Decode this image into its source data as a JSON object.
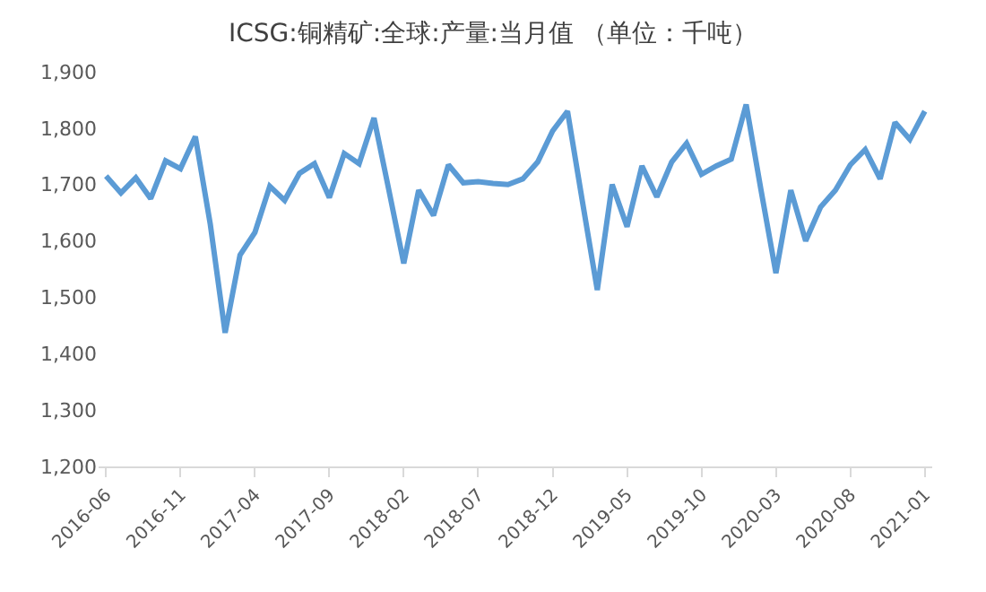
{
  "chart_data": {
    "type": "line",
    "title": "ICSG:铜精矿:全球:产量:当月值 （单位：千吨）",
    "categories": [
      "2016-06",
      null,
      null,
      null,
      null,
      "2016-11",
      null,
      null,
      null,
      null,
      "2017-04",
      null,
      null,
      null,
      null,
      "2017-09",
      null,
      null,
      null,
      null,
      "2018-02",
      null,
      null,
      null,
      null,
      "2018-07",
      null,
      null,
      null,
      null,
      "2018-12",
      null,
      null,
      null,
      null,
      "2019-05",
      null,
      null,
      null,
      null,
      "2019-10",
      null,
      null,
      null,
      null,
      "2020-03",
      null,
      null,
      null,
      null,
      "2020-08",
      null,
      null,
      null,
      null,
      "2021-01"
    ],
    "series": [
      {
        "color": "#5b9bd5",
        "values": [
          1715,
          1685,
          1712,
          1675,
          1742,
          1728,
          1785,
          1630,
          1437,
          1575,
          1615,
          1697,
          1672,
          1720,
          1737,
          1677,
          1755,
          1737,
          1818,
          1690,
          1560,
          1690,
          1645,
          1735,
          1703,
          1705,
          1702,
          1700,
          1710,
          1740,
          1795,
          1830,
          1670,
          1513,
          1700,
          1625,
          1733,
          1678,
          1740,
          1773,
          1718,
          1733,
          1745,
          1842,
          1690,
          1543,
          1690,
          1600,
          1660,
          1690,
          1735,
          1762,
          1710,
          1810,
          1780,
          1830
        ]
      }
    ],
    "ylim": [
      1200,
      1900
    ],
    "yticks": [
      {
        "value": 1200,
        "label": "1,200"
      },
      {
        "value": 1300,
        "label": "1,300"
      },
      {
        "value": 1400,
        "label": "1,400"
      },
      {
        "value": 1500,
        "label": "1,500"
      },
      {
        "value": 1600,
        "label": "1,600"
      },
      {
        "value": 1700,
        "label": "1,700"
      },
      {
        "value": 1800,
        "label": "1,800"
      },
      {
        "value": 1900,
        "label": "1,900"
      }
    ],
    "legend": false,
    "marker": "none",
    "line_style": "solid"
  }
}
